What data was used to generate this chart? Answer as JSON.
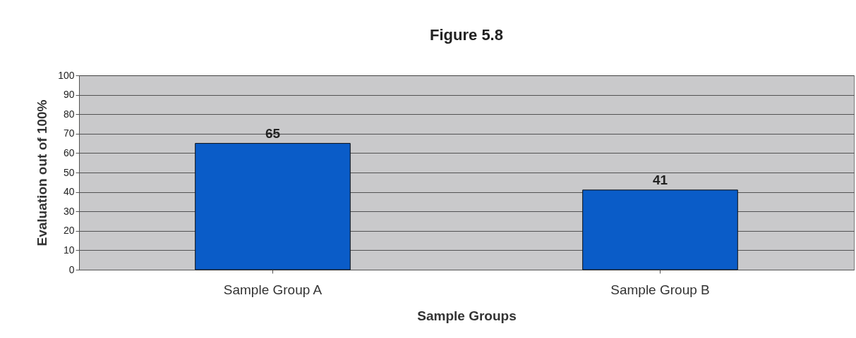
{
  "chart_data": {
    "type": "bar",
    "title": "Figure 5.8",
    "xlabel": "Sample Groups",
    "ylabel": "Evaluation out of 100%",
    "categories": [
      "Sample Group A",
      "Sample Group B"
    ],
    "values": [
      65,
      41
    ],
    "color": "#0a5cc8",
    "ylim": [
      0,
      100
    ],
    "yticks": [
      0,
      10,
      20,
      30,
      40,
      50,
      60,
      70,
      80,
      90,
      100
    ],
    "grid": "y",
    "data_labels": true
  }
}
